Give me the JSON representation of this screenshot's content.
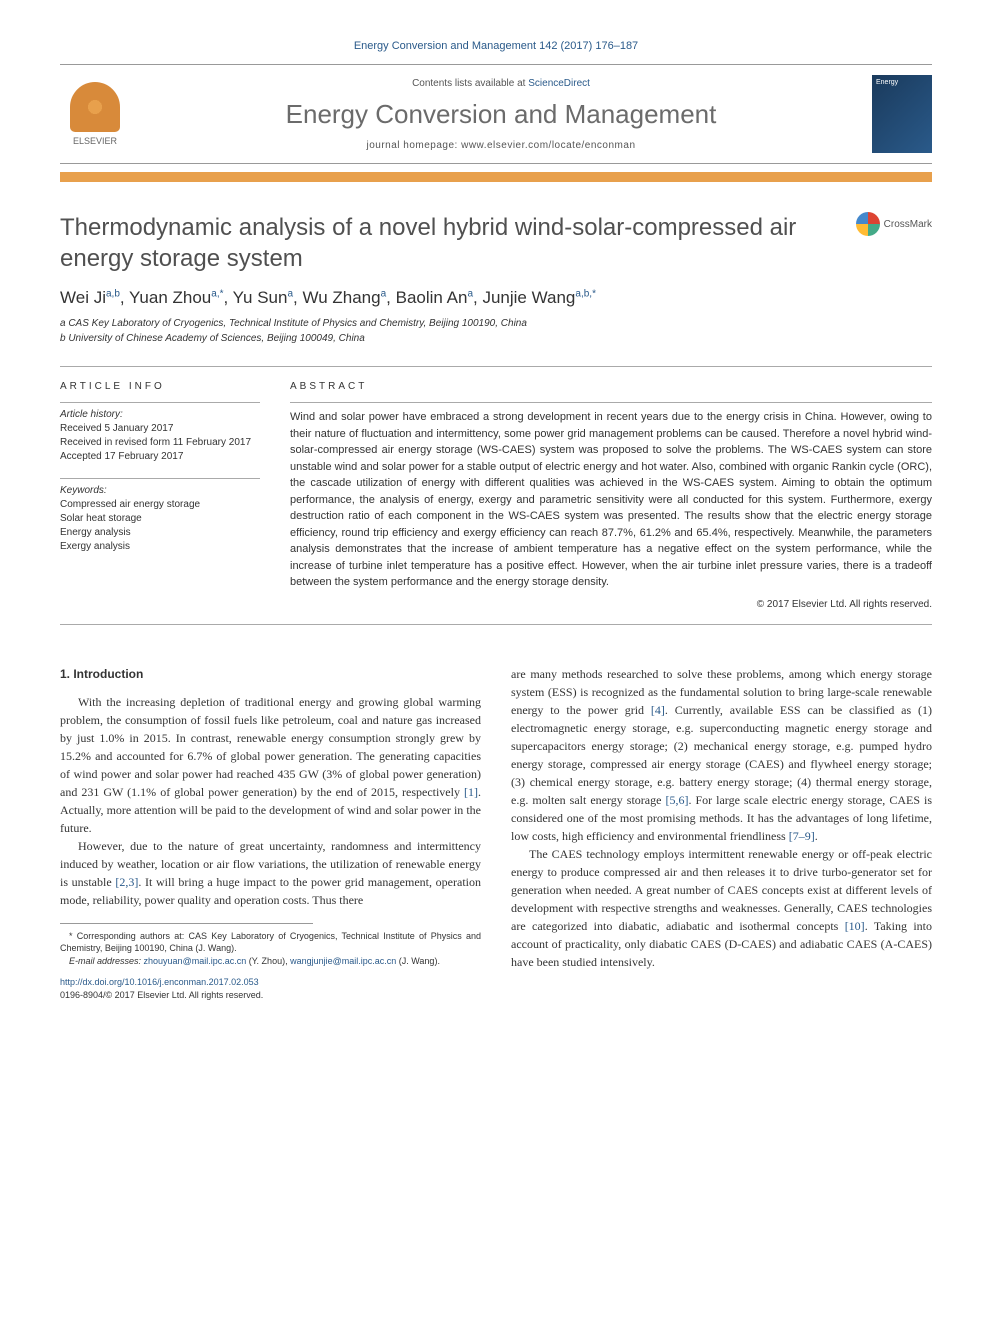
{
  "citation": "Energy Conversion and Management 142 (2017) 176–187",
  "contents_prefix": "Contents lists available at ",
  "contents_link": "ScienceDirect",
  "journal_name": "Energy Conversion and Management",
  "homepage_prefix": "journal homepage: ",
  "homepage_url": "www.elsevier.com/locate/enconman",
  "publisher": "ELSEVIER",
  "cover_text": "Energy",
  "title": "Thermodynamic analysis of a novel hybrid wind-solar-compressed air energy storage system",
  "crossmark": "CrossMark",
  "authors_html": "Wei Ji<sup>a,b</sup>, Yuan Zhou<sup>a,*</sup>, Yu Sun<sup>a</sup>, Wu Zhang<sup>a</sup>, Baolin An<sup>a</sup>, Junjie Wang<sup>a,b,*</sup>",
  "affiliations": [
    "a CAS Key Laboratory of Cryogenics, Technical Institute of Physics and Chemistry, Beijing 100190, China",
    "b University of Chinese Academy of Sciences, Beijing 100049, China"
  ],
  "info_heading": "ARTICLE INFO",
  "abstract_heading": "ABSTRACT",
  "history_label": "Article history:",
  "history": [
    "Received 5 January 2017",
    "Received in revised form 11 February 2017",
    "Accepted 17 February 2017"
  ],
  "keywords_label": "Keywords:",
  "keywords": [
    "Compressed air energy storage",
    "Solar heat storage",
    "Energy analysis",
    "Exergy analysis"
  ],
  "abstract": "Wind and solar power have embraced a strong development in recent years due to the energy crisis in China. However, owing to their nature of fluctuation and intermittency, some power grid management problems can be caused. Therefore a novel hybrid wind-solar-compressed air energy storage (WS-CAES) system was proposed to solve the problems. The WS-CAES system can store unstable wind and solar power for a stable output of electric energy and hot water. Also, combined with organic Rankin cycle (ORC), the cascade utilization of energy with different qualities was achieved in the WS-CAES system. Aiming to obtain the optimum performance, the analysis of energy, exergy and parametric sensitivity were all conducted for this system. Furthermore, exergy destruction ratio of each component in the WS-CAES system was presented. The results show that the electric energy storage efficiency, round trip efficiency and exergy efficiency can reach 87.7%, 61.2% and 65.4%, respectively. Meanwhile, the parameters analysis demonstrates that the increase of ambient temperature has a negative effect on the system performance, while the increase of turbine inlet temperature has a positive effect. However, when the air turbine inlet pressure varies, there is a tradeoff between the system performance and the energy storage density.",
  "copyright": "© 2017 Elsevier Ltd. All rights reserved.",
  "section1_heading": "1. Introduction",
  "col1_p1": "With the increasing depletion of traditional energy and growing global warming problem, the consumption of fossil fuels like petroleum, coal and nature gas increased by just 1.0% in 2015. In contrast, renewable energy consumption strongly grew by 15.2% and accounted for 6.7% of global power generation. The generating capacities of wind power and solar power had reached 435 GW (3% of global power generation) and 231 GW (1.1% of global power generation) by the end of 2015, respectively [1]. Actually, more attention will be paid to the development of wind and solar power in the future.",
  "col1_p2": "However, due to the nature of great uncertainty, randomness and intermittency induced by weather, location or air flow variations, the utilization of renewable energy is unstable [2,3]. It will bring a huge impact to the power grid management, operation mode, reliability, power quality and operation costs. Thus there",
  "col2_p1": "are many methods researched to solve these problems, among which energy storage system (ESS) is recognized as the fundamental solution to bring large-scale renewable energy to the power grid [4]. Currently, available ESS can be classified as (1) electromagnetic energy storage, e.g. superconducting magnetic energy storage and supercapacitors energy storage; (2) mechanical energy storage, e.g. pumped hydro energy storage, compressed air energy storage (CAES) and flywheel energy storage; (3) chemical energy storage, e.g. battery energy storage; (4) thermal energy storage, e.g. molten salt energy storage [5,6]. For large scale electric energy storage, CAES is considered one of the most promising methods. It has the advantages of long lifetime, low costs, high efficiency and environmental friendliness [7–9].",
  "col2_p2": "The CAES technology employs intermittent renewable energy or off-peak electric energy to produce compressed air and then releases it to drive turbo-generator set for generation when needed. A great number of CAES concepts exist at different levels of development with respective strengths and weaknesses. Generally, CAES technologies are categorized into diabatic, adiabatic and isothermal concepts [10]. Taking into account of practicality, only diabatic CAES (D-CAES) and adiabatic CAES (A-CAES) have been studied intensively.",
  "corr_author_note": "* Corresponding authors at: CAS Key Laboratory of Cryogenics, Technical Institute of Physics and Chemistry, Beijing 100190, China (J. Wang).",
  "email_label": "E-mail addresses: ",
  "email1": "zhouyuan@mail.ipc.ac.cn",
  "email1_who": " (Y. Zhou), ",
  "email2": "wangjunjie@mail.ipc.ac.cn",
  "email2_who": " (J. Wang).",
  "doi": "http://dx.doi.org/10.1016/j.enconman.2017.02.053",
  "issn": "0196-8904/© 2017 Elsevier Ltd. All rights reserved.",
  "colors": {
    "link": "#2a5a8a",
    "accent": "#e8a04c",
    "text": "#333333",
    "heading_gray": "#6b6b6b"
  }
}
